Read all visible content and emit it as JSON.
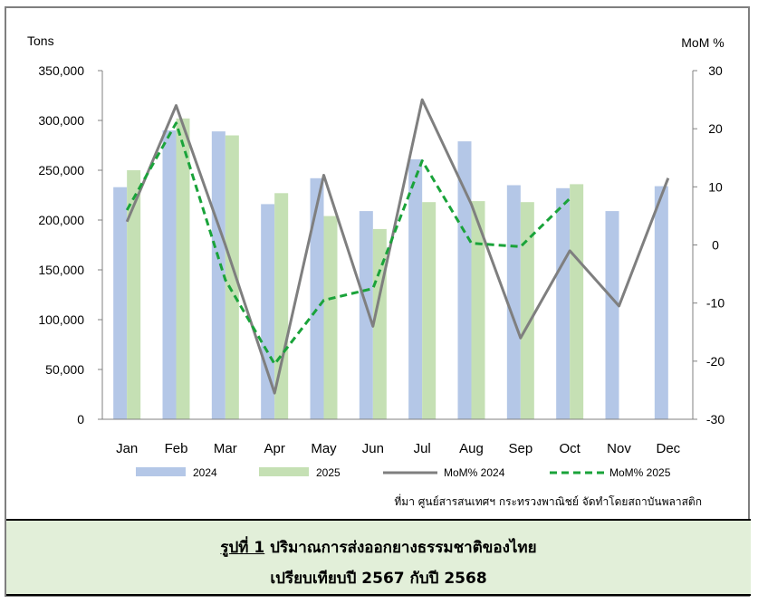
{
  "chart_data": {
    "type": "bar",
    "left_axis_title": "Tons",
    "right_axis_title": "MoM %",
    "categories": [
      "Jan",
      "Feb",
      "Mar",
      "Apr",
      "May",
      "Jun",
      "Jul",
      "Aug",
      "Sep",
      "Oct",
      "Nov",
      "Dec"
    ],
    "y_left": {
      "min": 0,
      "max": 350000,
      "ticks": [
        0,
        50000,
        100000,
        150000,
        200000,
        250000,
        300000,
        350000
      ],
      "tick_labels": [
        "0",
        "50,000",
        "100,000",
        "150,000",
        "200,000",
        "250,000",
        "300,000",
        "350,000"
      ]
    },
    "y_right": {
      "min": -30,
      "max": 30,
      "ticks": [
        -30,
        -20,
        -10,
        0,
        10,
        20,
        30
      ],
      "tick_labels": [
        "-30",
        "-20",
        "-10",
        "0",
        "10",
        "20",
        "30"
      ]
    },
    "bar_series": [
      {
        "name": "2024",
        "color": "#b4c7e7",
        "values": [
          233000,
          290000,
          289000,
          216000,
          242000,
          209000,
          261000,
          279000,
          235000,
          232000,
          209000,
          234000
        ]
      },
      {
        "name": "2025",
        "color": "#c5e0b4",
        "values": [
          250000,
          302000,
          285000,
          227000,
          204000,
          191000,
          218000,
          219000,
          218000,
          236000,
          null,
          null
        ]
      }
    ],
    "line_series": [
      {
        "name": "MoM% 2024",
        "color": "#7f7f7f",
        "dash": false,
        "values": [
          4,
          24,
          0,
          -25.5,
          12,
          -14,
          25,
          7,
          -16,
          -1,
          -10.5,
          11.5
        ]
      },
      {
        "name": "MoM% 2025",
        "color": "#1aa33a",
        "dash": true,
        "values": [
          6,
          21,
          -6,
          -20.5,
          -9.5,
          -7.5,
          14.5,
          0.3,
          -0.3,
          8,
          null,
          null
        ]
      }
    ],
    "legend": [
      "2024",
      "2025",
      "MoM% 2024",
      "MoM% 2025"
    ],
    "legend_position": "bottom",
    "grid": false
  },
  "source_note": "ที่มา ศูนย์สารสนเทศฯ กระทรวงพาณิชย์ จัดทำโดยสถาบันพลาสติก",
  "caption": {
    "figure_label": "รูปที่ 1",
    "line1_text": " ปริมาณการส่งออกยางธรรมชาติของไทย",
    "line2_text": "เปรียบเทียบปี 2567 กับปี 2568"
  }
}
